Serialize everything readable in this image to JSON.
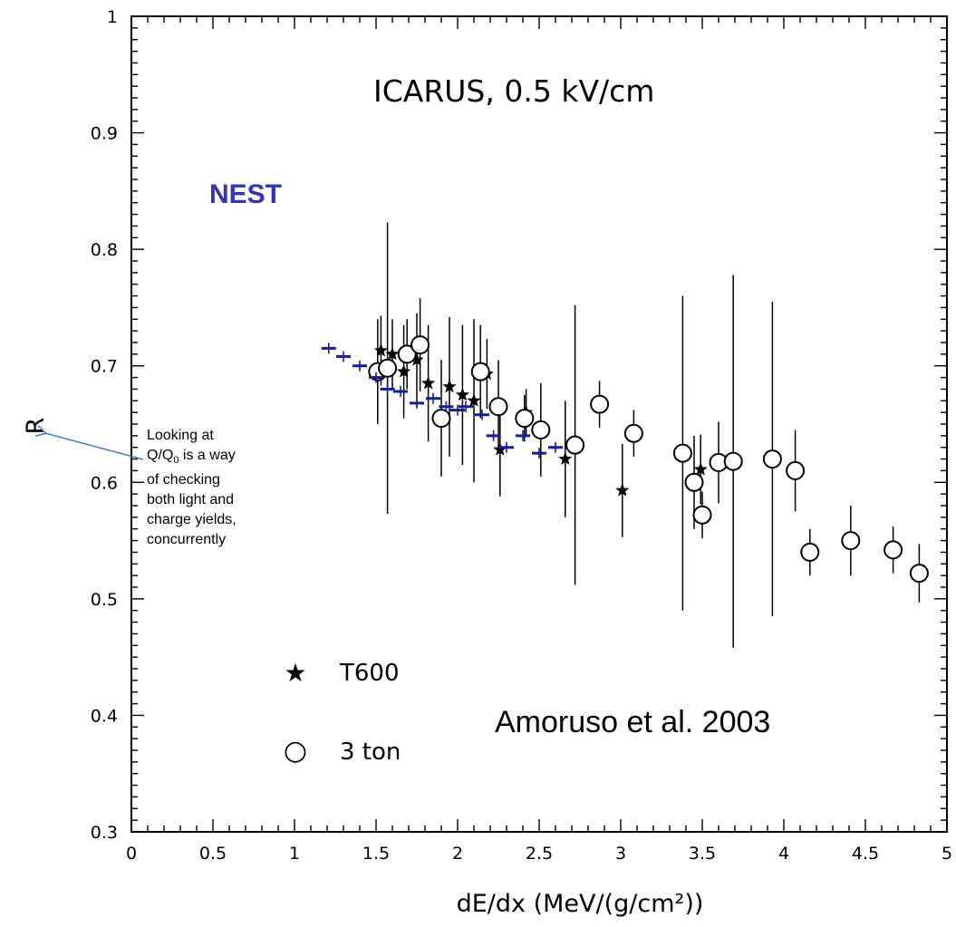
{
  "chart_data": {
    "type": "scatter",
    "title": "ICARUS, 0.5 kV/cm",
    "xlabel": "dE/dx (MeV/(g/cm²))",
    "ylabel": "R",
    "xlim": [
      0,
      5
    ],
    "ylim": [
      0.3,
      1.0
    ],
    "x_ticks": [
      "0",
      "0.5",
      "1",
      "1.5",
      "2",
      "2.5",
      "3",
      "3.5",
      "4",
      "4.5",
      "5"
    ],
    "y_ticks": [
      "0.3",
      "0.4",
      "0.5",
      "0.6",
      "0.7",
      "0.8",
      "0.9",
      "1"
    ],
    "legend": [
      {
        "marker": "★",
        "label": "T600"
      },
      {
        "marker": "○",
        "label": "3 ton"
      }
    ],
    "series": [
      {
        "name": "T600",
        "marker": "star",
        "color": "#000000",
        "x": [
          1.53,
          1.6,
          1.67,
          1.75,
          1.82,
          1.95,
          2.03,
          2.1,
          2.18,
          2.26,
          2.42,
          2.66,
          3.01,
          3.49
        ],
        "y": [
          0.713,
          0.71,
          0.695,
          0.705,
          0.685,
          0.682,
          0.675,
          0.67,
          0.693,
          0.628,
          0.66,
          0.62,
          0.593,
          0.611
        ],
        "err": [
          0.03,
          0.03,
          0.04,
          0.04,
          0.05,
          0.06,
          0.06,
          0.07,
          0.03,
          0.04,
          0.02,
          0.05,
          0.04,
          0.03
        ]
      },
      {
        "name": "3 ton",
        "marker": "circle",
        "color": "#000000",
        "x": [
          1.51,
          1.57,
          1.69,
          1.77,
          1.9,
          2.14,
          2.25,
          2.41,
          2.51,
          2.72,
          2.87,
          3.08,
          3.38,
          3.45,
          3.5,
          3.6,
          3.69,
          3.93,
          4.07,
          4.16,
          4.41,
          4.67,
          4.83
        ],
        "y": [
          0.695,
          0.698,
          0.71,
          0.718,
          0.655,
          0.695,
          0.665,
          0.655,
          0.645,
          0.632,
          0.667,
          0.642,
          0.625,
          0.6,
          0.572,
          0.617,
          0.618,
          0.62,
          0.61,
          0.54,
          0.55,
          0.542,
          0.522
        ],
        "err": [
          0.045,
          0.125,
          0.03,
          0.04,
          0.05,
          0.04,
          0.04,
          0.02,
          0.04,
          0.12,
          0.02,
          0.02,
          0.135,
          0.04,
          0.02,
          0.035,
          0.16,
          0.135,
          0.035,
          0.02,
          0.03,
          0.02,
          0.025
        ]
      },
      {
        "name": "NEST",
        "marker": "dash-cross",
        "color": "#1a1aa0",
        "x": [
          1.21,
          1.3,
          1.4,
          1.5,
          1.57,
          1.65,
          1.75,
          1.85,
          1.93,
          2.0,
          2.05,
          2.15,
          2.22,
          2.3,
          2.4,
          2.5,
          2.6
        ],
        "y": [
          0.715,
          0.708,
          0.7,
          0.69,
          0.68,
          0.678,
          0.668,
          0.672,
          0.665,
          0.662,
          0.665,
          0.658,
          0.64,
          0.63,
          0.64,
          0.625,
          0.63
        ]
      }
    ]
  },
  "annotations": {
    "nest_label": "NEST",
    "nest_color": "#3333bb",
    "citation": "Amoruso et al. 2003",
    "callout_line1": "Looking at",
    "callout_q": "Q/Q",
    "callout_q_sub": "0",
    "callout_rest_a": " is a way",
    "callout_line3": "of checking",
    "callout_line4": "both light and",
    "callout_line5": "charge yields,",
    "callout_line6": "concurrently",
    "arrow_color": "#4a7ebb"
  }
}
